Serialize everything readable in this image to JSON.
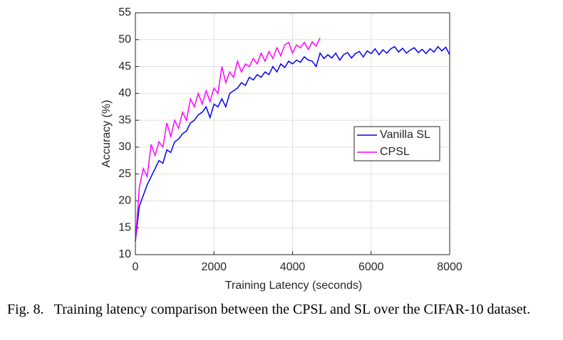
{
  "chart_data": {
    "type": "line",
    "x_label": "Training Latency (seconds)",
    "y_label": "Accuracy (%)",
    "xlim": [
      0,
      8000
    ],
    "xticks": [
      0,
      2000,
      4000,
      6000,
      8000
    ],
    "ylim": [
      10,
      55
    ],
    "yticks": [
      10,
      15,
      20,
      25,
      30,
      35,
      40,
      45,
      50,
      55
    ],
    "grid": true,
    "legend_position": "east",
    "series": [
      {
        "name": "Vanilla SL",
        "color": "#0000ee",
        "x": [
          0,
          100,
          200,
          300,
          400,
          500,
          600,
          700,
          800,
          900,
          1000,
          1100,
          1200,
          1300,
          1400,
          1500,
          1600,
          1700,
          1800,
          1900,
          2000,
          2100,
          2200,
          2300,
          2400,
          2500,
          2600,
          2700,
          2800,
          2900,
          3000,
          3100,
          3200,
          3300,
          3400,
          3500,
          3600,
          3700,
          3800,
          3900,
          4000,
          4100,
          4200,
          4300,
          4400,
          4500,
          4600,
          4700,
          4800,
          4900,
          5000,
          5100,
          5200,
          5300,
          5400,
          5500,
          5600,
          5700,
          5800,
          5900,
          6000,
          6100,
          6200,
          6300,
          6400,
          6500,
          6600,
          6700,
          6800,
          6900,
          7000,
          7100,
          7200,
          7300,
          7400,
          7500,
          7600,
          7700,
          7800,
          7900,
          8000
        ],
        "values": [
          12.5,
          19,
          21,
          23,
          24.5,
          26,
          27.5,
          27,
          29.5,
          29,
          31,
          31.5,
          32.5,
          33,
          34.5,
          35,
          36,
          36.5,
          37.5,
          35.5,
          38,
          37.5,
          39,
          37.5,
          40,
          40.5,
          41,
          42,
          41.5,
          43,
          42.5,
          43.5,
          43,
          44,
          43.5,
          45,
          44,
          45.5,
          44.8,
          46,
          45.5,
          46.2,
          45.8,
          46.8,
          46.2,
          46,
          45,
          47.5,
          46.5,
          47.2,
          46.6,
          47.5,
          46.2,
          47.2,
          47.6,
          46.6,
          47.4,
          47.8,
          46.8,
          47.9,
          47.4,
          48.3,
          47.2,
          48.1,
          47.5,
          48.3,
          48.7,
          47.7,
          48.4,
          47.5,
          48.1,
          48.5,
          47.6,
          48.2,
          47.4,
          48.3,
          47.7,
          48.7,
          47.9,
          48.6,
          47.2
        ]
      },
      {
        "name": "CPSL",
        "color": "#ff00ff",
        "x": [
          0,
          100,
          200,
          300,
          400,
          500,
          600,
          700,
          800,
          900,
          1000,
          1100,
          1200,
          1300,
          1400,
          1500,
          1600,
          1700,
          1800,
          1900,
          2000,
          2100,
          2200,
          2300,
          2400,
          2500,
          2600,
          2700,
          2800,
          2900,
          3000,
          3100,
          3200,
          3300,
          3400,
          3500,
          3600,
          3700,
          3800,
          3900,
          4000,
          4100,
          4200,
          4300,
          4400,
          4500,
          4600,
          4700
        ],
        "values": [
          12.5,
          22.5,
          26,
          24.5,
          30.5,
          28.5,
          31,
          30,
          34.5,
          32,
          35,
          33.5,
          36.5,
          35,
          39,
          37.5,
          40,
          38,
          40.5,
          38.5,
          41,
          40,
          45,
          42,
          44,
          43,
          46,
          44,
          45.5,
          45,
          46.5,
          45.5,
          47.5,
          46,
          47.8,
          46.5,
          48.5,
          47,
          49,
          49.5,
          47.5,
          49,
          48.5,
          49.5,
          48.2,
          49.6,
          48.8,
          50.3
        ]
      }
    ]
  },
  "caption": {
    "label": "Fig. 8.",
    "text": "Training latency comparison between the CPSL and SL over the CIFAR-10 dataset."
  }
}
